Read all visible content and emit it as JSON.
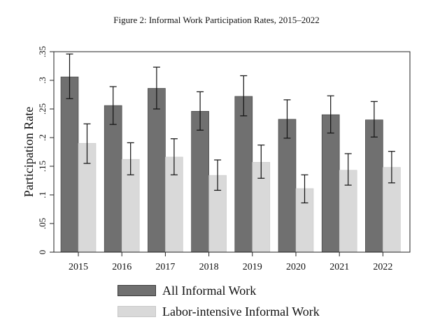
{
  "figure": {
    "title": "Figure 2: Informal Work Participation Rates, 2015–2022"
  },
  "legend": {
    "items": [
      "All Informal Work",
      "Labor-intensive Informal Work"
    ]
  },
  "colors": {
    "all": "#707070",
    "labor": "#d9d9d9",
    "frame": "#222222",
    "error": "#111111"
  },
  "chart_data": {
    "type": "bar",
    "title": "",
    "xlabel": "",
    "ylabel": "Participation Rate",
    "ylim": [
      0,
      0.35
    ],
    "yticks": [
      0,
      0.05,
      0.1,
      0.15,
      0.2,
      0.25,
      0.3,
      0.35
    ],
    "ytick_labels": [
      "0",
      ".05",
      ".1",
      ".15",
      ".2",
      ".25",
      ".3",
      ".35"
    ],
    "categories": [
      "2015",
      "2016",
      "2017",
      "2018",
      "2019",
      "2020",
      "2021",
      "2022"
    ],
    "legend_position": "bottom",
    "grid": false,
    "series": [
      {
        "name": "All Informal Work",
        "values": [
          0.306,
          0.256,
          0.286,
          0.246,
          0.272,
          0.232,
          0.24,
          0.231
        ],
        "ci_low": [
          0.268,
          0.223,
          0.25,
          0.213,
          0.238,
          0.199,
          0.208,
          0.201
        ],
        "ci_high": [
          0.346,
          0.289,
          0.323,
          0.28,
          0.308,
          0.266,
          0.273,
          0.263
        ]
      },
      {
        "name": "Labor-intensive Informal Work",
        "values": [
          0.19,
          0.162,
          0.166,
          0.134,
          0.157,
          0.111,
          0.143,
          0.148
        ],
        "ci_low": [
          0.155,
          0.135,
          0.135,
          0.108,
          0.129,
          0.086,
          0.117,
          0.121
        ],
        "ci_high": [
          0.224,
          0.191,
          0.198,
          0.161,
          0.187,
          0.135,
          0.172,
          0.176
        ]
      }
    ]
  }
}
